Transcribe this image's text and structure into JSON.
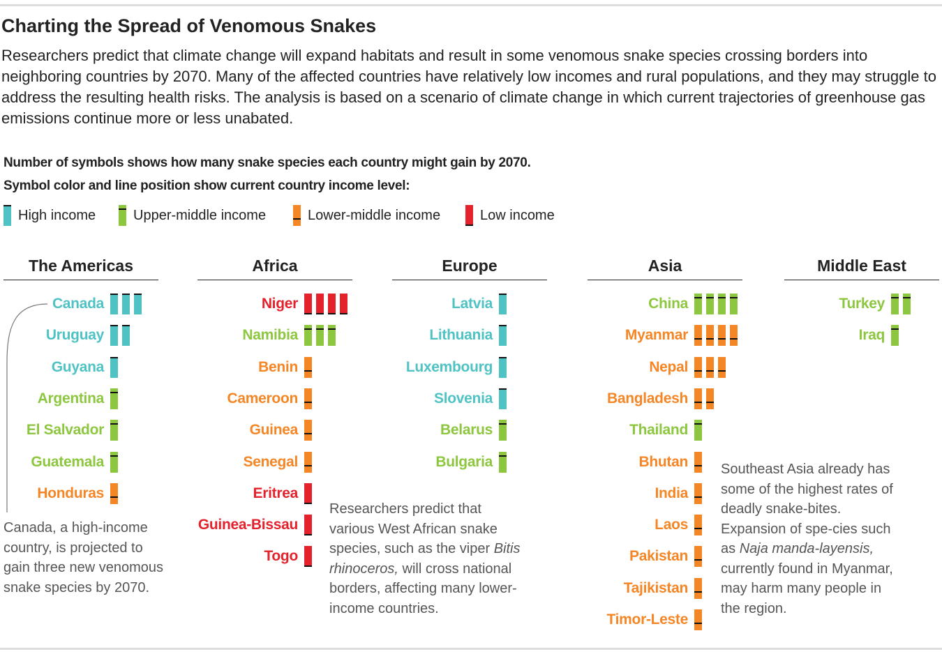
{
  "header": {
    "title": "Charting the Spread of Venomous Snakes",
    "subtitle": "Researchers predict that climate change will expand habitats and result in some venomous snake species crossing borders into neighboring countries by 2070. Many of the affected countries have relatively low incomes and rural populations, and they may struggle to address the resulting health risks. The analysis is based on a scenario of climate change in which current trajectories of greenhouse gas emissions continue more or less unabated."
  },
  "legend": {
    "heading": "Number of symbols shows how many snake species each country might gain by 2070.",
    "subheading": "Symbol color and line position show current country income level:",
    "items": [
      {
        "name": "High income",
        "color": "#4fc3c4",
        "line": "top"
      },
      {
        "name": "Upper-middle income",
        "color": "#8dc63f",
        "line": "upper"
      },
      {
        "name": "Lower-middle income",
        "color": "#f58626",
        "line": "lower"
      },
      {
        "name": "Low income",
        "color": "#e3222b",
        "line": "bottom"
      }
    ]
  },
  "chart_data": [
    {
      "type": "pictogram",
      "title": "The Americas",
      "categories": [
        "Canada",
        "Uruguay",
        "Guyana",
        "Argentina",
        "El Salvador",
        "Guatemala",
        "Honduras"
      ],
      "values": [
        3,
        2,
        1,
        1,
        1,
        1,
        1
      ],
      "income": [
        "High income",
        "High income",
        "High income",
        "Upper-middle income",
        "Upper-middle income",
        "Upper-middle income",
        "Lower-middle income"
      ],
      "annotation": [
        "Canada, a high-income country, is projected to gain three new venomous snake species by 2070."
      ]
    },
    {
      "type": "pictogram",
      "title": "Africa",
      "categories": [
        "Niger",
        "Namibia",
        "Benin",
        "Cameroon",
        "Guinea",
        "Senegal",
        "Eritrea",
        "Guinea-Bissau",
        "Togo"
      ],
      "values": [
        4,
        3,
        1,
        1,
        1,
        1,
        1,
        1,
        1
      ],
      "income": [
        "Low income",
        "Upper-middle income",
        "Lower-middle income",
        "Lower-middle income",
        "Lower-middle income",
        "Lower-middle income",
        "Low income",
        "Low income",
        "Low income"
      ],
      "annotation": [
        "Researchers predict that various West African snake species, such as the viper ",
        "Bitis rhinoceros,",
        " will cross national borders, affecting many lower-income countries."
      ]
    },
    {
      "type": "pictogram",
      "title": "Europe",
      "categories": [
        "Latvia",
        "Lithuania",
        "Luxembourg",
        "Slovenia",
        "Belarus",
        "Bulgaria"
      ],
      "values": [
        1,
        1,
        1,
        1,
        1,
        1
      ],
      "income": [
        "High income",
        "High income",
        "High income",
        "High income",
        "Upper-middle income",
        "Upper-middle income"
      ]
    },
    {
      "type": "pictogram",
      "title": "Asia",
      "categories": [
        "China",
        "Myanmar",
        "Nepal",
        "Bangladesh",
        "Thailand",
        "Bhutan",
        "India",
        "Laos",
        "Pakistan",
        "Tajikistan",
        "Timor-Leste"
      ],
      "values": [
        4,
        4,
        3,
        2,
        1,
        1,
        1,
        1,
        1,
        1,
        1
      ],
      "income": [
        "Upper-middle income",
        "Lower-middle income",
        "Lower-middle income",
        "Lower-middle income",
        "Upper-middle income",
        "Lower-middle income",
        "Lower-middle income",
        "Lower-middle income",
        "Lower-middle income",
        "Lower-middle income",
        "Lower-middle income"
      ],
      "annotation": [
        "Southeast Asia already has some of the highest rates of deadly snake-bites. Expansion of spe-cies such as ",
        "Naja manda-layensis,",
        " currently found in Myanmar, may harm many people in the region."
      ]
    },
    {
      "type": "pictogram",
      "title": "Middle East",
      "categories": [
        "Turkey",
        "Iraq"
      ],
      "values": [
        2,
        1
      ],
      "income": [
        "Upper-middle income",
        "Upper-middle income"
      ]
    }
  ]
}
